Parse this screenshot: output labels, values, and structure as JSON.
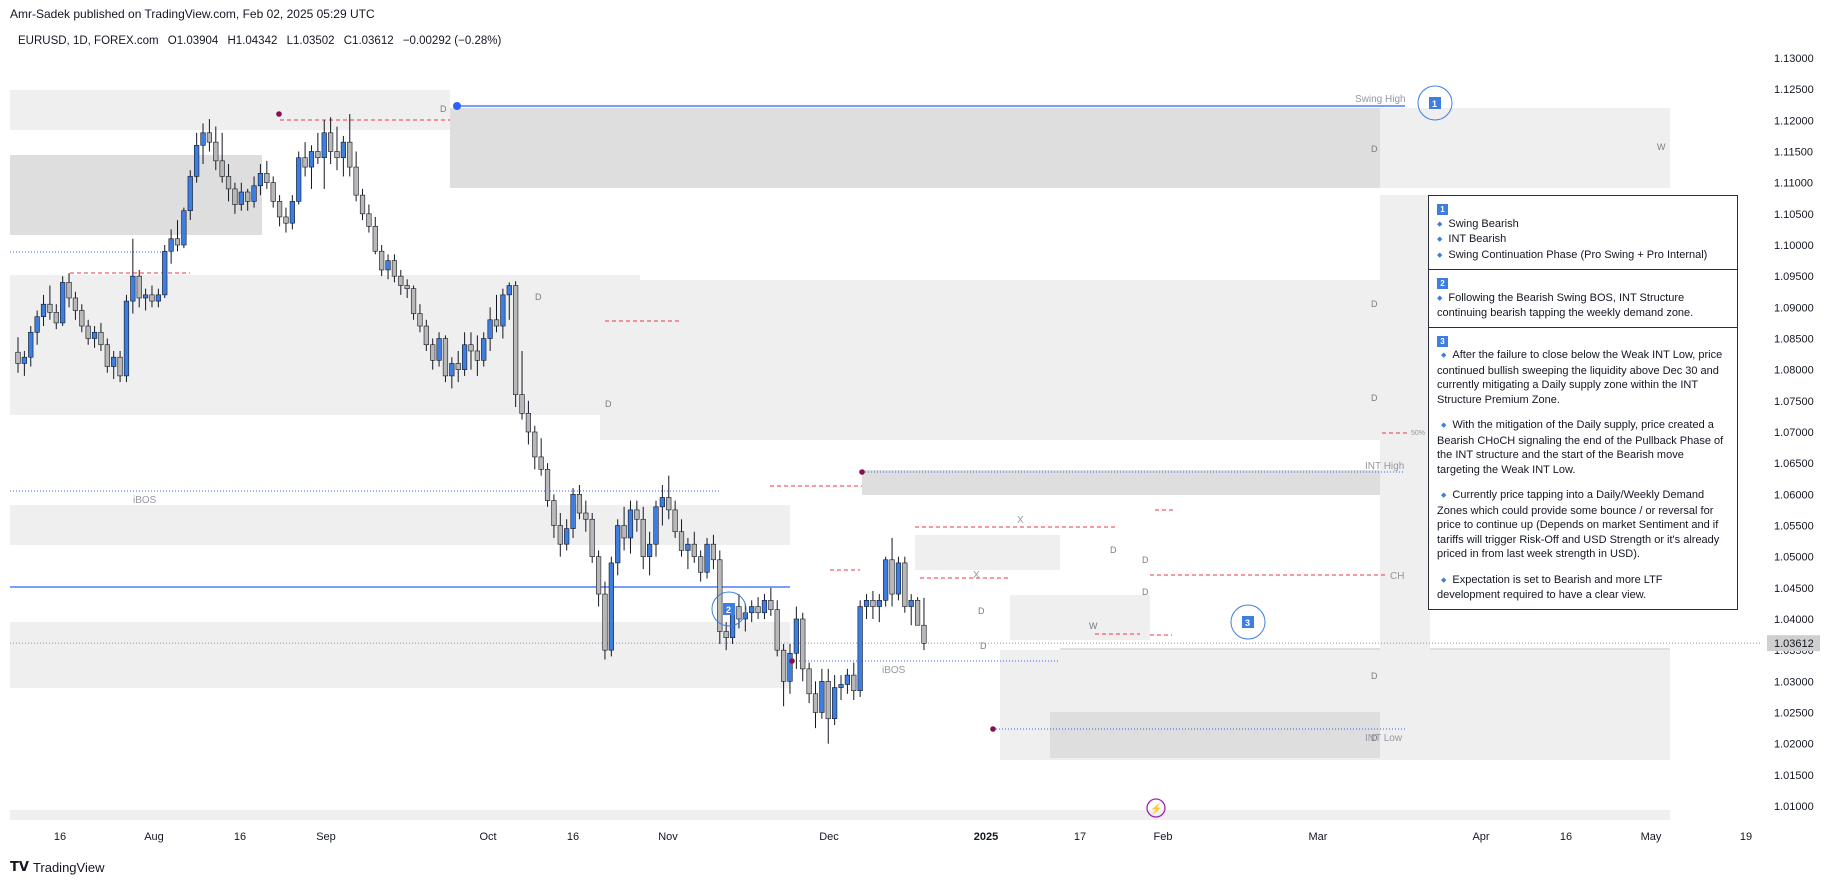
{
  "publish_line": "Amr-Sadek published on TradingView.com, Feb 02, 2025 05:29 UTC",
  "legend": {
    "symbol": "EURUSD, 1D, FOREX.com",
    "open": "O1.03904",
    "high": "H1.04342",
    "low": "L1.03502",
    "close": "C1.03612",
    "change": "−0.00292 (−0.28%)"
  },
  "footer": {
    "brand": "TradingView"
  },
  "colors": {
    "bull": "#3d7ee0",
    "bear": "#b8b8b8",
    "edge": "#131722",
    "zone_light": "#efefef",
    "zone_dark": "#dedede",
    "pivot": "#880e4f",
    "line_blue": "#2962ff"
  },
  "chart_data": {
    "type": "candlestick",
    "y_axis": {
      "ticks": [
        "1.13000",
        "1.12500",
        "1.12000",
        "1.11500",
        "1.11000",
        "1.10500",
        "1.10000",
        "1.09500",
        "1.09000",
        "1.08500",
        "1.08000",
        "1.07500",
        "1.07000",
        "1.06500",
        "1.06000",
        "1.05500",
        "1.05000",
        "1.04500",
        "1.04000",
        "1.03500",
        "1.03000",
        "1.02500",
        "1.02000",
        "1.01500",
        "1.01000"
      ],
      "range": [
        1.0075,
        1.1335
      ]
    },
    "x_axis": {
      "ticks": [
        "16",
        "Aug",
        "16",
        "Sep",
        "Oct",
        "16",
        "Nov",
        "Dec",
        "2025",
        "17",
        "Feb",
        "Mar",
        "Apr",
        "16",
        "May",
        "19"
      ],
      "bold_tick": "2025"
    },
    "last_price": {
      "value": 1.03612,
      "label": "1.03612"
    },
    "candles": [
      [
        1.0828,
        1.0852,
        1.0795,
        1.081
      ],
      [
        1.081,
        1.083,
        1.079,
        1.082
      ],
      [
        1.082,
        1.087,
        1.0805,
        1.086
      ],
      [
        1.086,
        1.0895,
        1.084,
        1.0885
      ],
      [
        1.0885,
        1.092,
        1.087,
        1.0905
      ],
      [
        1.0905,
        1.0935,
        1.088,
        1.0892
      ],
      [
        1.0892,
        1.0905,
        1.0865,
        1.0875
      ],
      [
        1.0875,
        1.095,
        1.087,
        1.094
      ],
      [
        1.094,
        1.0955,
        1.09,
        1.0915
      ],
      [
        1.0915,
        1.0925,
        1.088,
        1.0895
      ],
      [
        1.0895,
        1.0905,
        1.086,
        1.087
      ],
      [
        1.087,
        1.088,
        1.084,
        1.085
      ],
      [
        1.085,
        1.087,
        1.0835,
        1.086
      ],
      [
        1.086,
        1.0875,
        1.083,
        1.084
      ],
      [
        1.084,
        1.085,
        1.0795,
        1.0805
      ],
      [
        1.0805,
        1.083,
        1.0785,
        1.082
      ],
      [
        1.082,
        1.083,
        1.078,
        1.079
      ],
      [
        1.079,
        1.092,
        1.078,
        1.091
      ],
      [
        1.091,
        1.101,
        1.089,
        1.095
      ],
      [
        1.095,
        1.096,
        1.09,
        1.0915
      ],
      [
        1.0915,
        1.093,
        1.0895,
        1.092
      ],
      [
        1.092,
        1.0935,
        1.09,
        1.091
      ],
      [
        1.091,
        1.093,
        1.09,
        1.092
      ],
      [
        1.092,
        1.1,
        1.0915,
        1.099
      ],
      [
        1.099,
        1.1025,
        1.097,
        1.101
      ],
      [
        1.101,
        1.104,
        1.099,
        1.1
      ],
      [
        1.1,
        1.106,
        1.0995,
        1.1055
      ],
      [
        1.1055,
        1.112,
        1.104,
        1.111
      ],
      [
        1.111,
        1.118,
        1.11,
        1.116
      ],
      [
        1.116,
        1.1195,
        1.113,
        1.118
      ],
      [
        1.118,
        1.1202,
        1.115,
        1.1165
      ],
      [
        1.1165,
        1.119,
        1.112,
        1.1135
      ],
      [
        1.1135,
        1.118,
        1.11,
        1.111
      ],
      [
        1.111,
        1.113,
        1.107,
        1.109
      ],
      [
        1.109,
        1.11,
        1.105,
        1.1065
      ],
      [
        1.1065,
        1.11,
        1.1055,
        1.1085
      ],
      [
        1.1085,
        1.109,
        1.1055,
        1.107
      ],
      [
        1.107,
        1.111,
        1.106,
        1.1095
      ],
      [
        1.1095,
        1.113,
        1.108,
        1.1115
      ],
      [
        1.1115,
        1.1135,
        1.109,
        1.11
      ],
      [
        1.11,
        1.111,
        1.106,
        1.107
      ],
      [
        1.107,
        1.108,
        1.103,
        1.1045
      ],
      [
        1.1045,
        1.106,
        1.102,
        1.1035
      ],
      [
        1.1035,
        1.108,
        1.1025,
        1.107
      ],
      [
        1.107,
        1.115,
        1.1065,
        1.114
      ],
      [
        1.114,
        1.1165,
        1.111,
        1.1125
      ],
      [
        1.1125,
        1.116,
        1.109,
        1.115
      ],
      [
        1.115,
        1.118,
        1.113,
        1.114
      ],
      [
        1.114,
        1.12,
        1.109,
        1.118
      ],
      [
        1.118,
        1.1205,
        1.113,
        1.115
      ],
      [
        1.115,
        1.119,
        1.112,
        1.114
      ],
      [
        1.114,
        1.1175,
        1.111,
        1.1165
      ],
      [
        1.1165,
        1.121,
        1.111,
        1.1125
      ],
      [
        1.1125,
        1.115,
        1.107,
        1.108
      ],
      [
        1.108,
        1.109,
        1.104,
        1.105
      ],
      [
        1.105,
        1.1065,
        1.102,
        1.103
      ],
      [
        1.103,
        1.1045,
        1.0985,
        1.099
      ],
      [
        1.099,
        1.1,
        1.095,
        1.096
      ],
      [
        1.096,
        1.0985,
        1.0945,
        1.0975
      ],
      [
        1.0975,
        1.0985,
        1.094,
        1.095
      ],
      [
        1.095,
        1.096,
        1.092,
        1.0935
      ],
      [
        1.0935,
        1.0945,
        1.0915,
        1.093
      ],
      [
        1.093,
        1.0935,
        1.088,
        1.089
      ],
      [
        1.089,
        1.0905,
        1.086,
        1.087
      ],
      [
        1.087,
        1.088,
        1.083,
        1.084
      ],
      [
        1.084,
        1.085,
        1.08,
        1.0815
      ],
      [
        1.0815,
        1.086,
        1.0805,
        1.085
      ],
      [
        1.085,
        1.0855,
        1.078,
        1.079
      ],
      [
        1.079,
        1.082,
        1.077,
        1.081
      ],
      [
        1.081,
        1.083,
        1.078,
        1.08
      ],
      [
        1.08,
        1.086,
        1.079,
        1.084
      ],
      [
        1.084,
        1.086,
        1.08,
        1.083
      ],
      [
        1.083,
        1.0855,
        1.079,
        1.0815
      ],
      [
        1.0815,
        1.086,
        1.0805,
        1.085
      ],
      [
        1.085,
        1.09,
        1.083,
        1.088
      ],
      [
        1.088,
        1.092,
        1.086,
        1.087
      ],
      [
        1.087,
        1.093,
        1.085,
        1.092
      ],
      [
        1.092,
        1.094,
        1.088,
        1.0935
      ],
      [
        1.0935,
        1.0942,
        1.074,
        1.076
      ],
      [
        1.076,
        1.083,
        1.072,
        1.073
      ],
      [
        1.073,
        1.075,
        1.068,
        1.07
      ],
      [
        1.07,
        1.071,
        1.064,
        1.066
      ],
      [
        1.066,
        1.069,
        1.063,
        1.064
      ],
      [
        1.064,
        1.065,
        1.058,
        1.059
      ],
      [
        1.059,
        1.06,
        1.053,
        1.055
      ],
      [
        1.055,
        1.057,
        1.05,
        1.052
      ],
      [
        1.052,
        1.056,
        1.051,
        1.0545
      ],
      [
        1.0545,
        1.061,
        1.053,
        1.06
      ],
      [
        1.06,
        1.0615,
        1.056,
        1.057
      ],
      [
        1.057,
        1.059,
        1.054,
        1.056
      ],
      [
        1.056,
        1.057,
        1.049,
        1.05
      ],
      [
        1.05,
        1.051,
        1.042,
        1.044
      ],
      [
        1.044,
        1.046,
        1.0335,
        1.035
      ],
      [
        1.035,
        1.05,
        1.034,
        1.049
      ],
      [
        1.049,
        1.056,
        1.047,
        1.055
      ],
      [
        1.055,
        1.058,
        1.051,
        1.053
      ],
      [
        1.053,
        1.059,
        1.0505,
        1.0575
      ],
      [
        1.0575,
        1.059,
        1.054,
        1.056
      ],
      [
        1.056,
        1.058,
        1.048,
        1.05
      ],
      [
        1.05,
        1.054,
        1.047,
        1.052
      ],
      [
        1.052,
        1.059,
        1.05,
        1.058
      ],
      [
        1.058,
        1.0615,
        1.055,
        1.0595
      ],
      [
        1.0595,
        1.063,
        1.056,
        1.0575
      ],
      [
        1.0575,
        1.059,
        1.053,
        1.054
      ],
      [
        1.054,
        1.056,
        1.05,
        1.051
      ],
      [
        1.051,
        1.053,
        1.048,
        1.052
      ],
      [
        1.052,
        1.054,
        1.049,
        1.05
      ],
      [
        1.05,
        1.051,
        1.046,
        1.0475
      ],
      [
        1.0475,
        1.053,
        1.0465,
        1.052
      ],
      [
        1.052,
        1.0535,
        1.048,
        1.0495
      ],
      [
        1.0495,
        1.051,
        1.036,
        1.038
      ],
      [
        1.038,
        1.0395,
        1.035,
        1.037
      ],
      [
        1.037,
        1.0425,
        1.036,
        1.042
      ],
      [
        1.042,
        1.044,
        1.0385,
        1.04
      ],
      [
        1.04,
        1.0425,
        1.038,
        1.041
      ],
      [
        1.041,
        1.043,
        1.0395,
        1.042
      ],
      [
        1.042,
        1.0435,
        1.04,
        1.041
      ],
      [
        1.041,
        1.044,
        1.04,
        1.043
      ],
      [
        1.043,
        1.045,
        1.0405,
        1.0415
      ],
      [
        1.0415,
        1.043,
        1.034,
        1.035
      ],
      [
        1.035,
        1.036,
        1.026,
        1.03
      ],
      [
        1.03,
        1.036,
        1.028,
        1.0345
      ],
      [
        1.0345,
        1.042,
        1.032,
        1.04
      ],
      [
        1.04,
        1.041,
        1.03,
        1.032
      ],
      [
        1.032,
        1.033,
        1.0265,
        1.028
      ],
      [
        1.028,
        1.03,
        1.0225,
        1.025
      ],
      [
        1.025,
        1.032,
        1.024,
        1.03
      ],
      [
        1.03,
        1.032,
        1.02,
        1.024
      ],
      [
        1.024,
        1.031,
        1.023,
        1.029
      ],
      [
        1.029,
        1.031,
        1.027,
        1.0295
      ],
      [
        1.0295,
        1.032,
        1.028,
        1.031
      ],
      [
        1.031,
        1.033,
        1.027,
        1.0285
      ],
      [
        1.0285,
        1.043,
        1.0275,
        1.042
      ],
      [
        1.042,
        1.044,
        1.04,
        1.043
      ],
      [
        1.043,
        1.0445,
        1.04,
        1.042
      ],
      [
        1.042,
        1.044,
        1.0395,
        1.043
      ],
      [
        1.043,
        1.05,
        1.042,
        1.0495
      ],
      [
        1.0495,
        1.053,
        1.042,
        1.044
      ],
      [
        1.044,
        1.05,
        1.043,
        1.049
      ],
      [
        1.049,
        1.05,
        1.041,
        1.042
      ],
      [
        1.042,
        1.044,
        1.039,
        1.043
      ],
      [
        1.043,
        1.0435,
        1.039,
        1.039
      ],
      [
        1.039,
        1.0434,
        1.035,
        1.0361
      ]
    ],
    "annotations": {
      "labels": [
        "Swing High",
        "INT High",
        "INT Low",
        "CH",
        "iBOS",
        "iBOS",
        "X",
        "X",
        "50%"
      ],
      "zone_letters": [
        "D",
        "D",
        "D",
        "D",
        "D",
        "D",
        "D",
        "D",
        "D",
        "D",
        "D",
        "D",
        "D",
        "W",
        "W",
        "W"
      ],
      "circles": [
        "1",
        "2",
        "3"
      ]
    }
  },
  "info_box": {
    "s1": {
      "badge": "1",
      "items": [
        "Swing Bearish",
        "INT Bearish",
        "Swing Continuation Phase (Pro Swing + Pro Internal)"
      ]
    },
    "s2": {
      "badge": "2",
      "items": [
        "Following the Bearish Swing BOS, INT Structure continuing bearish tapping the weekly demand zone."
      ]
    },
    "s3": {
      "badge": "3",
      "paras": [
        "After the failure to close below the Weak INT Low, price continued bullish sweeping the liquidity above Dec 30 and currently mitigating a Daily supply zone within the INT Structure Premium Zone.",
        "With the mitigation of the Daily supply, price created a Bearish CHoCH signaling the end of the Pullback Phase of the INT structure and the start of the Bearish move targeting the Weak INT Low.",
        "Currently price tapping into a Daily/Weekly Demand Zones which could provide some bounce / or reversal for price to continue up (Depends on market Sentiment and if tariffs will trigger Risk-Off and USD Strength or it's already priced in from last week strength in USD).",
        "Expectation is set to Bearish and more LTF development required to have a clear view."
      ]
    }
  }
}
